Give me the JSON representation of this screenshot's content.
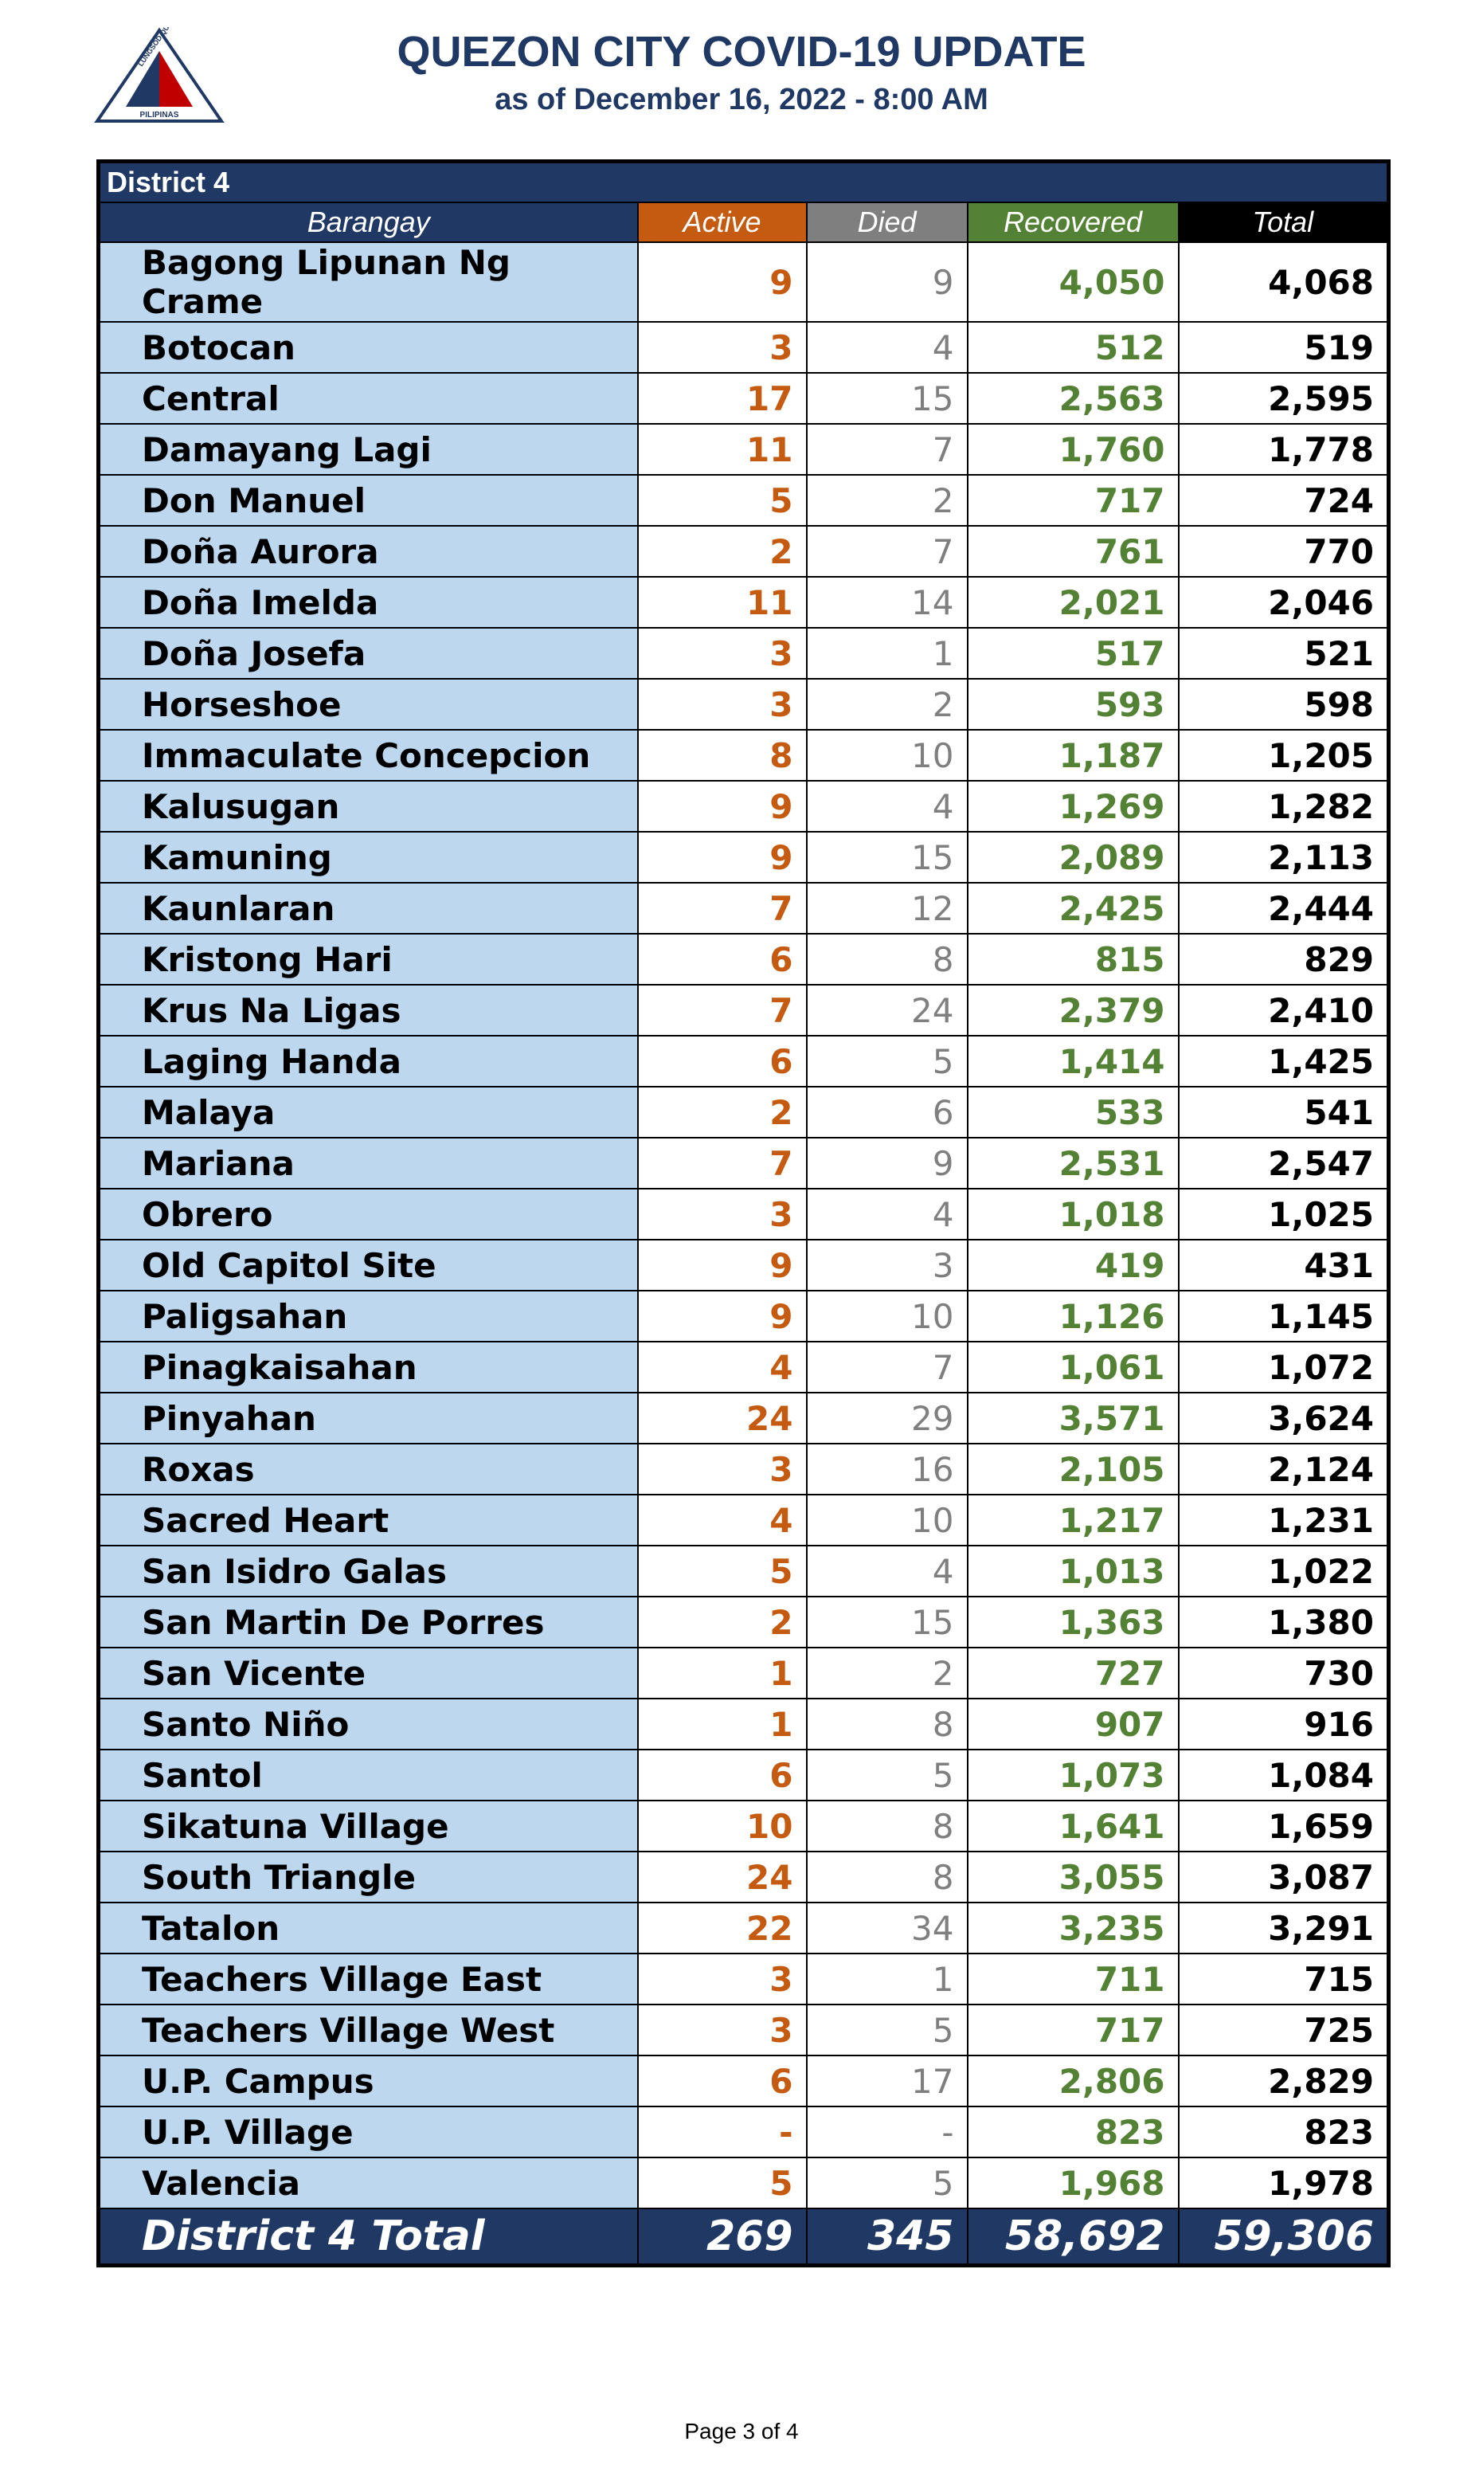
{
  "header": {
    "title": "QUEZON CITY COVID-19 UPDATE",
    "subtitle": "as of December 16, 2022 - 8:00 AM",
    "logo": {
      "top": "LUNGSOD QUEZON",
      "bottom": "PILIPINAS"
    }
  },
  "table": {
    "district": "District 4",
    "columns": [
      "Barangay",
      "Active",
      "Died",
      "Recovered",
      "Total"
    ],
    "rows": [
      [
        "Bagong Lipunan Ng Crame",
        "9",
        "9",
        "4,050",
        "4,068"
      ],
      [
        "Botocan",
        "3",
        "4",
        "512",
        "519"
      ],
      [
        "Central",
        "17",
        "15",
        "2,563",
        "2,595"
      ],
      [
        "Damayang Lagi",
        "11",
        "7",
        "1,760",
        "1,778"
      ],
      [
        "Don Manuel",
        "5",
        "2",
        "717",
        "724"
      ],
      [
        "Doña Aurora",
        "2",
        "7",
        "761",
        "770"
      ],
      [
        "Doña Imelda",
        "11",
        "14",
        "2,021",
        "2,046"
      ],
      [
        "Doña Josefa",
        "3",
        "1",
        "517",
        "521"
      ],
      [
        "Horseshoe",
        "3",
        "2",
        "593",
        "598"
      ],
      [
        "Immaculate Concepcion",
        "8",
        "10",
        "1,187",
        "1,205"
      ],
      [
        "Kalusugan",
        "9",
        "4",
        "1,269",
        "1,282"
      ],
      [
        "Kamuning",
        "9",
        "15",
        "2,089",
        "2,113"
      ],
      [
        "Kaunlaran",
        "7",
        "12",
        "2,425",
        "2,444"
      ],
      [
        "Kristong Hari",
        "6",
        "8",
        "815",
        "829"
      ],
      [
        "Krus Na Ligas",
        "7",
        "24",
        "2,379",
        "2,410"
      ],
      [
        "Laging Handa",
        "6",
        "5",
        "1,414",
        "1,425"
      ],
      [
        "Malaya",
        "2",
        "6",
        "533",
        "541"
      ],
      [
        "Mariana",
        "7",
        "9",
        "2,531",
        "2,547"
      ],
      [
        "Obrero",
        "3",
        "4",
        "1,018",
        "1,025"
      ],
      [
        "Old Capitol Site",
        "9",
        "3",
        "419",
        "431"
      ],
      [
        "Paligsahan",
        "9",
        "10",
        "1,126",
        "1,145"
      ],
      [
        "Pinagkaisahan",
        "4",
        "7",
        "1,061",
        "1,072"
      ],
      [
        "Pinyahan",
        "24",
        "29",
        "3,571",
        "3,624"
      ],
      [
        "Roxas",
        "3",
        "16",
        "2,105",
        "2,124"
      ],
      [
        "Sacred Heart",
        "4",
        "10",
        "1,217",
        "1,231"
      ],
      [
        "San Isidro Galas",
        "5",
        "4",
        "1,013",
        "1,022"
      ],
      [
        "San Martin De Porres",
        "2",
        "15",
        "1,363",
        "1,380"
      ],
      [
        "San Vicente",
        "1",
        "2",
        "727",
        "730"
      ],
      [
        "Santo Niño",
        "1",
        "8",
        "907",
        "916"
      ],
      [
        "Santol",
        "6",
        "5",
        "1,073",
        "1,084"
      ],
      [
        "Sikatuna Village",
        "10",
        "8",
        "1,641",
        "1,659"
      ],
      [
        "South Triangle",
        "24",
        "8",
        "3,055",
        "3,087"
      ],
      [
        "Tatalon",
        "22",
        "34",
        "3,235",
        "3,291"
      ],
      [
        "Teachers Village East",
        "3",
        "1",
        "711",
        "715"
      ],
      [
        "Teachers Village West",
        "3",
        "5",
        "717",
        "725"
      ],
      [
        "U.P. Campus",
        "6",
        "17",
        "2,806",
        "2,829"
      ],
      [
        "U.P. Village",
        "-",
        "-",
        "823",
        "823"
      ],
      [
        "Valencia",
        "5",
        "5",
        "1,968",
        "1,978"
      ]
    ],
    "total": [
      "District 4 Total",
      "269",
      "345",
      "58,692",
      "59,306"
    ]
  },
  "footer": "Page 3 of 4"
}
